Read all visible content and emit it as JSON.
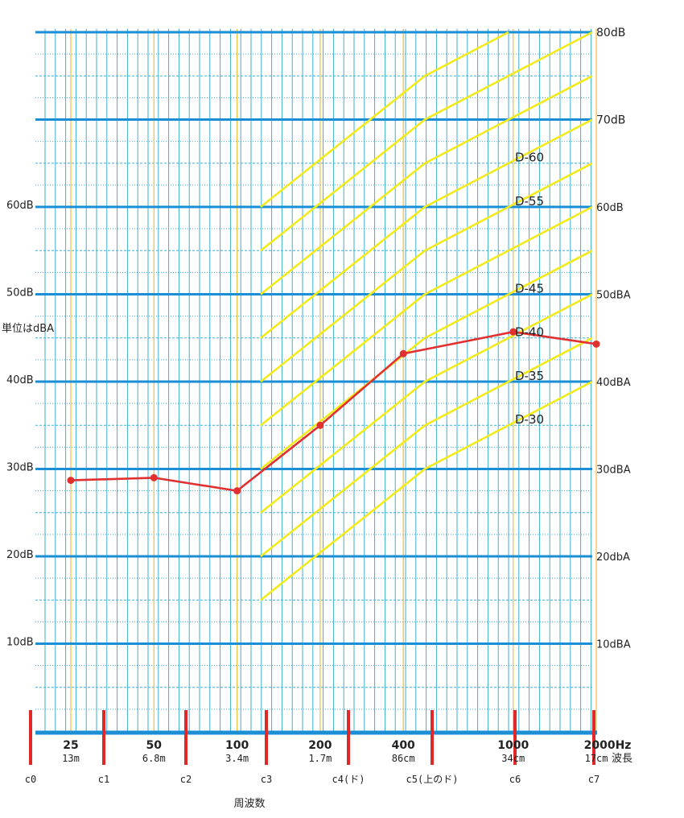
{
  "chart_data": {
    "type": "line",
    "unit_note": "単位はdBA",
    "xlabel": "周波数",
    "wavelength_label": "波長",
    "x_ticks": [
      {
        "freq": 25,
        "label": "25",
        "wavelength": "13m"
      },
      {
        "freq": 50,
        "label": "50",
        "wavelength": "6.8m"
      },
      {
        "freq": 100,
        "label": "100",
        "wavelength": "3.4m"
      },
      {
        "freq": 200,
        "label": "200",
        "wavelength": "1.7m"
      },
      {
        "freq": 400,
        "label": "400",
        "wavelength": "86cm"
      },
      {
        "freq": 1000,
        "label": "1000",
        "wavelength": "34cm"
      },
      {
        "freq": 2000,
        "label": "2000Hz",
        "wavelength": "17cm"
      }
    ],
    "octave_markers": [
      {
        "label": "c0"
      },
      {
        "label": "c1"
      },
      {
        "label": "c2"
      },
      {
        "label": "c3"
      },
      {
        "label": "c4(ド)"
      },
      {
        "label": "c5(上のド)"
      },
      {
        "label": "c6"
      },
      {
        "label": "c7"
      }
    ],
    "y_left_labels": [
      "10dB",
      "20dB",
      "30dB",
      "40dB",
      "50dB",
      "60dB"
    ],
    "y_right_labels": [
      "10dBA",
      "20dbA",
      "30dBA",
      "40dBA",
      "50dBA",
      "60dB",
      "70dB",
      "80dB"
    ],
    "ylim": [
      0,
      80
    ],
    "grid": true,
    "curves": [
      {
        "name": "D-30",
        "start": 15
      },
      {
        "name": "D-35",
        "start": 20
      },
      {
        "name": "D-40",
        "start": 25
      },
      {
        "name": "D-45",
        "start": 30
      },
      {
        "name": "",
        "start": 35
      },
      {
        "name": "D-55",
        "start": 40
      },
      {
        "name": "D-60",
        "start": 45
      },
      {
        "name": "",
        "start": 50
      },
      {
        "name": "",
        "start": 55
      },
      {
        "name": "",
        "start": 60
      }
    ],
    "series": [
      {
        "name": "",
        "color": "#e03030",
        "points": [
          {
            "freq": 25,
            "value": 28.7
          },
          {
            "freq": 50,
            "value": 29.0
          },
          {
            "freq": 100,
            "value": 27.5
          },
          {
            "freq": 200,
            "value": 35.0
          },
          {
            "freq": 400,
            "value": 43.2
          },
          {
            "freq": 1000,
            "value": 45.7
          },
          {
            "freq": 2000,
            "value": 44.3
          }
        ]
      }
    ],
    "colors": {
      "major_grid": "#1a8fd6",
      "minor_grid": "#3ab0d8",
      "freq_grid": "#f5c242",
      "curves": "#f2ea1a",
      "octave": "#e02828"
    }
  }
}
